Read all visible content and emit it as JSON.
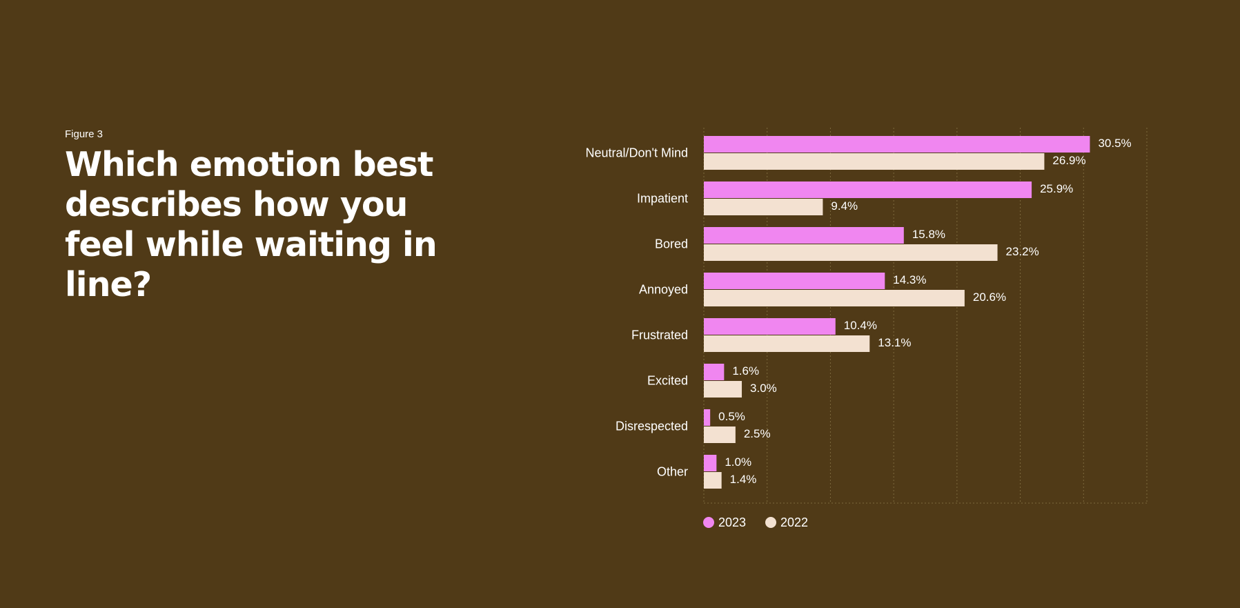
{
  "figure_label": "Figure 3",
  "title": "Which emotion best describes how you feel while waiting in line?",
  "colors": {
    "background": "#503a17",
    "series_2023": "#f086f0",
    "series_2022": "#f3e1d1",
    "grid": "#7d6a3e"
  },
  "chart_data": {
    "type": "bar",
    "orientation": "horizontal",
    "title": "Which emotion best describes how you feel while waiting in line?",
    "categories": [
      "Neutral/Don't Mind",
      "Impatient",
      "Bored",
      "Annoyed",
      "Frustrated",
      "Excited",
      "Disrespected",
      "Other"
    ],
    "series": [
      {
        "name": "2023",
        "color": "#f086f0",
        "values": [
          30.5,
          25.9,
          15.8,
          14.3,
          10.4,
          1.6,
          0.5,
          1.0
        ],
        "labels": [
          "30.5%",
          "25.9%",
          "15.8%",
          "14.3%",
          "10.4%",
          "1.6%",
          "0.5%",
          "1.0%"
        ]
      },
      {
        "name": "2022",
        "color": "#f3e1d1",
        "values": [
          26.9,
          9.4,
          23.2,
          20.6,
          13.1,
          3.0,
          2.5,
          1.4
        ],
        "labels": [
          "26.9%",
          "9.4%",
          "23.2%",
          "20.6%",
          "13.1%",
          "3.0%",
          "2.5%",
          "1.4%"
        ]
      }
    ],
    "xlim": [
      0,
      35
    ],
    "grid": true,
    "legend_position": "bottom-left"
  }
}
